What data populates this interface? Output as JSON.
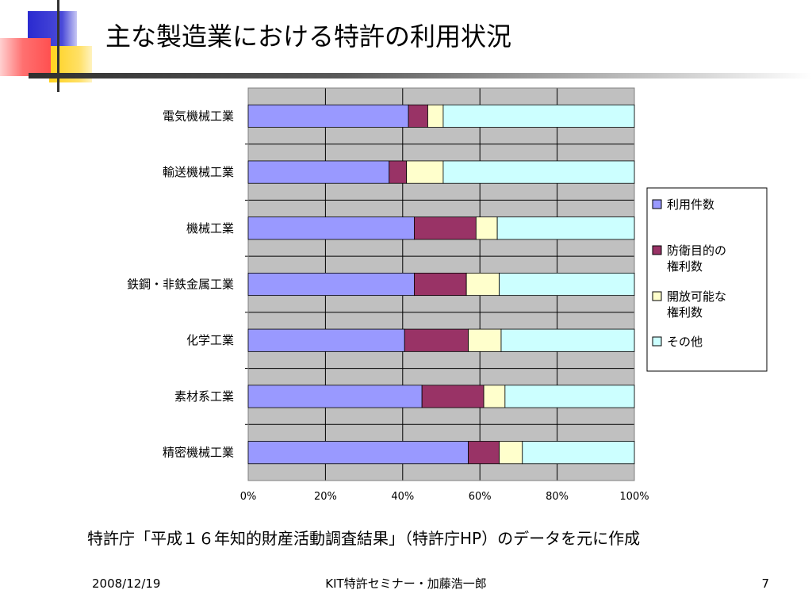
{
  "slide": {
    "title": "主な製造業における特許の利用状況",
    "source_note": "特許庁「平成１６年知的財産活動調査結果」（特許庁HP）のデータを元に作成",
    "footer": {
      "date": "2008/12/19",
      "center": "KIT特許セミナー・加藤浩一郎",
      "page": "7"
    }
  },
  "colors": {
    "accent_blue": "#2d2dd0",
    "accent_red": "#ff5b5b",
    "accent_yellow": "#ffd11a"
  },
  "chart_data": {
    "type": "bar",
    "orientation": "horizontal",
    "stacked": "percent",
    "categories": [
      "電気機械工業",
      "輸送機械工業",
      "機械工業",
      "鉄鋼・非鉄金属工業",
      "化学工業",
      "素材系工業",
      "精密機械工業"
    ],
    "series": [
      {
        "name": "利用件数",
        "color": "#9999ff",
        "values": [
          41.5,
          36.5,
          43,
          43,
          40.5,
          45,
          57
        ]
      },
      {
        "name": "防衛目的の権利数",
        "color": "#993366",
        "values": [
          5,
          4.5,
          16,
          13.5,
          16.5,
          16,
          8
        ]
      },
      {
        "name": "開放可能な権利数",
        "color": "#ffffcc",
        "values": [
          4,
          9.5,
          5.5,
          8.5,
          8.5,
          5.5,
          6
        ]
      },
      {
        "name": "その他",
        "color": "#ccffff",
        "values": [
          49.5,
          49.5,
          35.5,
          35,
          34.5,
          33.5,
          29
        ]
      }
    ],
    "legend_labels": [
      "利用件数",
      "防衛目的の\n権利数",
      "開放可能な\n権利数",
      "その他"
    ],
    "x_ticks": [
      "0%",
      "20%",
      "40%",
      "60%",
      "80%",
      "100%"
    ],
    "xlim": [
      0,
      100
    ],
    "grid": true,
    "plot_background": "#c0c0c0",
    "legend_position": "right"
  }
}
